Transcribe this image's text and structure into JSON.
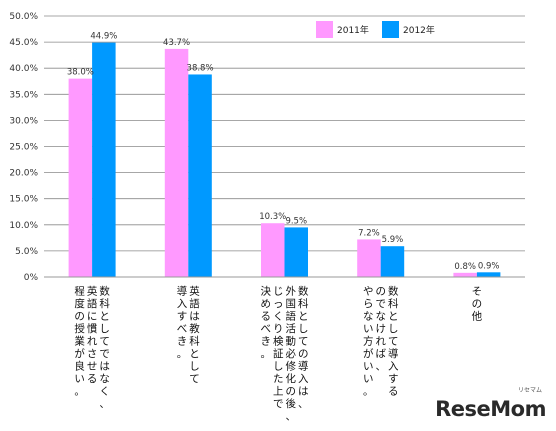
{
  "chart_data": {
    "type": "bar",
    "categories": [
      "数科としてではなく、英語に慣れさせる程度の授業が良い。",
      "英語は教科として導入すべき。",
      "教科としての導入は、外国語活動必修化の後、じっくり検証した上で決めるべき。",
      "教科として導入するのでなければ、やらない方がいい。",
      "その他"
    ],
    "category_lines": [
      [
        "数科としてではなく、",
        "英語に慣れさせる",
        "程度の授業が良い。"
      ],
      [
        "英語は教科として",
        "導入すべき。"
      ],
      [
        "数科としての導入は、",
        "外国語活動必修化の後、",
        "じっくり検証した上で",
        "決めるべき。"
      ],
      [
        "数科として導入する",
        "のでなければ、",
        "やらない方がいい。"
      ],
      [
        "その他"
      ]
    ],
    "series": [
      {
        "name": "2011年",
        "color": "#ff99ff",
        "values": [
          38.0,
          43.7,
          10.3,
          7.2,
          0.8
        ],
        "labels": [
          "38.0%",
          "43.7%",
          "10.3%",
          "7.2%",
          "0.8%"
        ]
      },
      {
        "name": "2012年",
        "color": "#0099ff",
        "values": [
          44.9,
          38.8,
          9.5,
          5.9,
          0.9
        ],
        "labels": [
          "44.9%",
          "38.8%",
          "9.5%",
          "5.9%",
          "0.9%"
        ]
      }
    ],
    "ylim": [
      0,
      50
    ],
    "yticks": [
      0,
      5,
      10,
      15,
      20,
      25,
      30,
      35,
      40,
      45,
      50
    ],
    "ytick_labels": [
      "0%",
      "5.0%",
      "10.0%",
      "15.0%",
      "20.0%",
      "25.0%",
      "30.0%",
      "35.0%",
      "40.0%",
      "45.0%",
      "50.0%"
    ],
    "grid": true,
    "legend_position": "top-right"
  },
  "watermark": {
    "text": "ReseMom",
    "small": "リセマム"
  }
}
